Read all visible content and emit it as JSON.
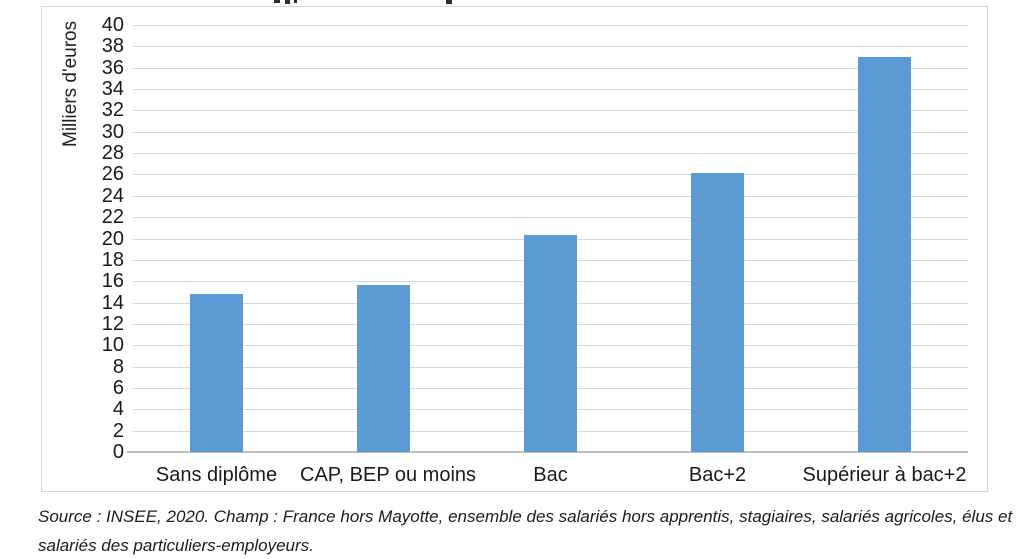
{
  "chart_data": {
    "type": "bar",
    "categories": [
      "Sans diplôme",
      "CAP, BEP ou moins",
      "Bac",
      "Bac+2",
      "Supérieur à bac+2"
    ],
    "values": [
      14.8,
      15.6,
      20.3,
      26.1,
      37.0
    ],
    "title": "",
    "xlabel": "",
    "ylabel": "Milliers d'euros",
    "ylim": [
      0,
      40
    ],
    "ytick_step": 2,
    "grid": true,
    "legend": "none",
    "bar_color": "#5b9bd5"
  },
  "footer": {
    "source_line1": "Source : INSEE, 2020. Champ : France hors Mayotte, ensemble des salariés hors apprentis, stagiaires, salariés agricoles, élus et",
    "source_line2": "salariés des particuliers-employeurs."
  },
  "colors": {
    "bar": "#5b9bd5",
    "gridline": "#d9d9d9",
    "frame_border": "#d6d6d6",
    "axis_line": "#bfbfbf",
    "text": "#1a1a1a"
  }
}
